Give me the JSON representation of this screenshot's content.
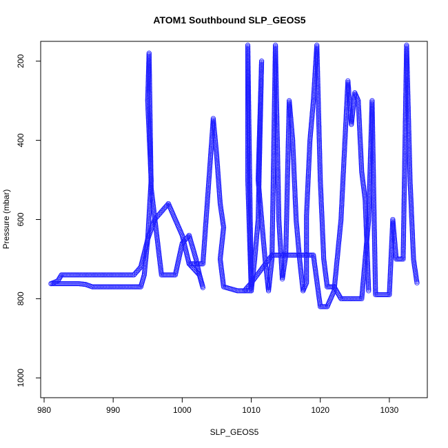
{
  "chart_data": {
    "type": "scatter",
    "title": "ATOM1 Southbound SLP_GEOS5",
    "xlabel": "SLP_GEOS5",
    "ylabel": "Pressure (mbar)",
    "xlim": [
      979.5,
      1035.5
    ],
    "ylim": [
      150,
      1050
    ],
    "y_reversed": true,
    "x_ticks": [
      980,
      990,
      1000,
      1010,
      1020,
      1030
    ],
    "y_ticks": [
      200,
      400,
      600,
      800,
      1000
    ],
    "grid": false,
    "legend": "none",
    "marker": "open-circle",
    "color": "#1f1fff",
    "series": [
      {
        "values": [
          [
            981,
            762
          ],
          [
            983,
            762
          ],
          [
            985,
            762
          ],
          [
            986,
            764
          ],
          [
            987,
            770
          ],
          [
            990,
            770
          ],
          [
            993,
            770
          ],
          [
            994,
            770
          ],
          [
            994.5,
            740
          ],
          [
            995,
            650
          ],
          [
            995.5,
            500
          ],
          [
            995,
            300
          ],
          [
            995.2,
            180
          ],
          [
            995.5,
            520
          ],
          [
            997,
            740
          ],
          [
            999,
            740
          ],
          [
            1000,
            660
          ],
          [
            1001,
            640
          ],
          [
            1002,
            700
          ],
          [
            1002.5,
            740
          ],
          [
            1003,
            772
          ],
          [
            1002.5,
            740
          ],
          [
            1001,
            712
          ]
        ]
      },
      {
        "values": [
          [
            981,
            762
          ],
          [
            982,
            755
          ],
          [
            982.5,
            740
          ],
          [
            985,
            740
          ],
          [
            990,
            740
          ],
          [
            993,
            740
          ],
          [
            994,
            720
          ],
          [
            995,
            650
          ],
          [
            996,
            600
          ],
          [
            997,
            580
          ],
          [
            998,
            560
          ],
          [
            999,
            600
          ],
          [
            1000,
            640
          ],
          [
            1001,
            712
          ],
          [
            1003,
            712
          ],
          [
            1004.5,
            345
          ],
          [
            1005,
            440
          ],
          [
            1005.5,
            560
          ],
          [
            1006,
            620
          ],
          [
            1005.5,
            700
          ],
          [
            1006,
            770
          ],
          [
            1008,
            780
          ],
          [
            1010,
            780
          ],
          [
            1009.5,
            500
          ],
          [
            1009.5,
            160
          ],
          [
            1010,
            780
          ],
          [
            1010.5,
            700
          ],
          [
            1011,
            600
          ],
          [
            1011.5,
            200
          ],
          [
            1011,
            500
          ],
          [
            1012,
            700
          ],
          [
            1012.5,
            780
          ],
          [
            1013,
            700
          ],
          [
            1013.5,
            160
          ],
          [
            1014,
            600
          ],
          [
            1014.5,
            750
          ],
          [
            1015,
            690
          ],
          [
            1015.5,
            300
          ],
          [
            1016,
            400
          ],
          [
            1016.5,
            600
          ],
          [
            1017,
            700
          ],
          [
            1017.5,
            780
          ],
          [
            1018,
            760
          ],
          [
            1018,
            590
          ],
          [
            1018.5,
            400
          ],
          [
            1019,
            300
          ],
          [
            1019.5,
            160
          ],
          [
            1020,
            500
          ],
          [
            1020.5,
            700
          ],
          [
            1021,
            770
          ],
          [
            1022,
            770
          ],
          [
            1023,
            800
          ],
          [
            1026,
            800
          ],
          [
            1027,
            600
          ],
          [
            1027.5,
            300
          ],
          [
            1028,
            790
          ],
          [
            1030,
            790
          ],
          [
            1030.5,
            600
          ],
          [
            1031,
            700
          ],
          [
            1032,
            700
          ],
          [
            1032.5,
            160
          ],
          [
            1033,
            500
          ],
          [
            1033.5,
            700
          ],
          [
            1034,
            760
          ]
        ]
      },
      {
        "values": [
          [
            1009,
            780
          ],
          [
            1010,
            760
          ],
          [
            1013,
            690
          ],
          [
            1016,
            690
          ],
          [
            1019,
            690
          ],
          [
            1020,
            820
          ],
          [
            1021,
            820
          ],
          [
            1022,
            780
          ],
          [
            1023,
            600
          ],
          [
            1024,
            250
          ],
          [
            1024.5,
            360
          ],
          [
            1025,
            280
          ],
          [
            1025.5,
            300
          ],
          [
            1026,
            480
          ],
          [
            1026.5,
            550
          ],
          [
            1027,
            780
          ]
        ]
      }
    ]
  }
}
